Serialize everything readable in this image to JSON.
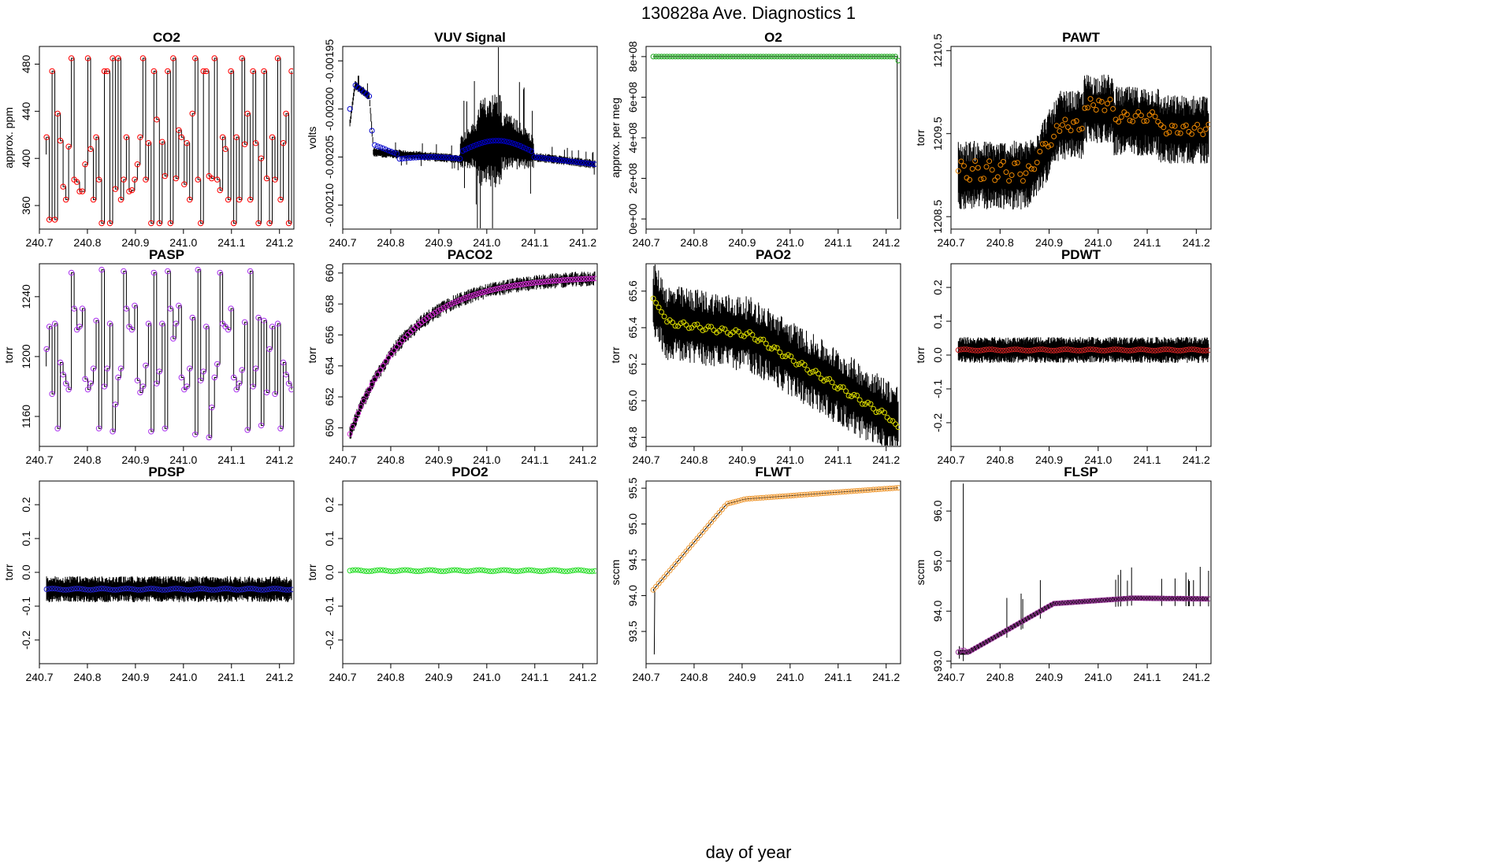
{
  "page": {
    "title": "130828a   Ave. Diagnostics 1",
    "xlabel": "day of year"
  },
  "chart_data": [
    {
      "type": "line",
      "title": "CO2",
      "ylabel": "approx. ppm",
      "xlim": [
        240.7,
        241.23
      ],
      "ylim": [
        340,
        495
      ],
      "xticks": [
        "240.7",
        "240.8",
        "240.9",
        "241.0",
        "241.1",
        "241.2"
      ],
      "yticks": [
        "360",
        "400",
        "440",
        "480"
      ],
      "point_color": "#ff0000",
      "pattern": "co2"
    },
    {
      "type": "line",
      "title": "VUV Signal",
      "ylabel": "volts",
      "xlim": [
        240.7,
        241.23
      ],
      "ylim": [
        -0.002125,
        -0.001935
      ],
      "xticks": [
        "240.7",
        "240.8",
        "240.9",
        "241.0",
        "241.1",
        "241.2"
      ],
      "yticks": [
        "-0.00210",
        "-0.00205",
        "-0.00200",
        "-0.00195"
      ],
      "point_color": "#0000cc",
      "pattern": "vuv"
    },
    {
      "type": "line",
      "title": "O2",
      "ylabel": "approx. per meg",
      "xlim": [
        240.7,
        241.23
      ],
      "ylim": [
        -50000000,
        850000000
      ],
      "xticks": [
        "240.7",
        "240.8",
        "240.9",
        "241.0",
        "241.1",
        "241.2"
      ],
      "yticks": [
        "0e+00",
        "2e+08",
        "4e+08",
        "6e+08",
        "8e+08"
      ],
      "point_color": "#22aa22",
      "pattern": "o2"
    },
    {
      "type": "line",
      "title": "PAWT",
      "ylabel": "torr",
      "xlim": [
        240.7,
        241.23
      ],
      "ylim": [
        1208.35,
        1210.55
      ],
      "xticks": [
        "240.7",
        "240.8",
        "240.9",
        "241.0",
        "241.1",
        "241.2"
      ],
      "yticks": [
        "1208.5",
        "1209.5",
        "1210.5"
      ],
      "point_color": "#ee8800",
      "pattern": "pawt"
    },
    {
      "type": "line",
      "title": "PASP",
      "ylabel": "torr",
      "xlim": [
        240.7,
        241.23
      ],
      "ylim": [
        1140,
        1262
      ],
      "xticks": [
        "240.7",
        "240.8",
        "240.9",
        "241.0",
        "241.1",
        "241.2"
      ],
      "yticks": [
        "1160",
        "1200",
        "1240"
      ],
      "point_color": "#aa33ee",
      "pattern": "pasp"
    },
    {
      "type": "line",
      "title": "PACO2",
      "ylabel": "torr",
      "xlim": [
        240.7,
        241.23
      ],
      "ylim": [
        648.8,
        660.6
      ],
      "xticks": [
        "240.7",
        "240.8",
        "240.9",
        "241.0",
        "241.1",
        "241.2"
      ],
      "yticks": [
        "650",
        "652",
        "654",
        "656",
        "658",
        "660"
      ],
      "point_color": "#dd33dd",
      "pattern": "paco2"
    },
    {
      "type": "line",
      "title": "PAO2",
      "ylabel": "torr",
      "xlim": [
        240.7,
        241.23
      ],
      "ylim": [
        64.75,
        65.75
      ],
      "xticks": [
        "240.7",
        "240.8",
        "240.9",
        "241.0",
        "241.1",
        "241.2"
      ],
      "yticks": [
        "64.8",
        "65.0",
        "65.2",
        "65.4",
        "65.6"
      ],
      "point_color": "#dddd00",
      "pattern": "pao2"
    },
    {
      "type": "line",
      "title": "PDWT",
      "ylabel": "torr",
      "xlim": [
        240.7,
        241.23
      ],
      "ylim": [
        -0.27,
        0.27
      ],
      "xticks": [
        "240.7",
        "240.8",
        "240.9",
        "241.0",
        "241.1",
        "241.2"
      ],
      "yticks": [
        "-0.2",
        "-0.1",
        "0.0",
        "0.1",
        "0.2"
      ],
      "point_color": "#cc2222",
      "pattern": "pdwt"
    },
    {
      "type": "line",
      "title": "PDSP",
      "ylabel": "torr",
      "xlim": [
        240.7,
        241.23
      ],
      "ylim": [
        -0.27,
        0.27
      ],
      "xticks": [
        "240.7",
        "240.8",
        "240.9",
        "241.0",
        "241.1",
        "241.2"
      ],
      "yticks": [
        "-0.2",
        "-0.1",
        "0.0",
        "0.1",
        "0.2"
      ],
      "point_color": "#2222cc",
      "pattern": "pdsp"
    },
    {
      "type": "line",
      "title": "PDO2",
      "ylabel": "torr",
      "xlim": [
        240.7,
        241.23
      ],
      "ylim": [
        -0.27,
        0.27
      ],
      "xticks": [
        "240.7",
        "240.8",
        "240.9",
        "241.0",
        "241.1",
        "241.2"
      ],
      "yticks": [
        "-0.2",
        "-0.1",
        "0.0",
        "0.1",
        "0.2"
      ],
      "point_color": "#22dd22",
      "pattern": "pdo2"
    },
    {
      "type": "line",
      "title": "FLWT",
      "ylabel": "sccm",
      "xlim": [
        240.7,
        241.23
      ],
      "ylim": [
        93.05,
        95.6
      ],
      "xticks": [
        "240.7",
        "240.8",
        "240.9",
        "241.0",
        "241.1",
        "241.2"
      ],
      "yticks": [
        "93.5",
        "94.0",
        "94.5",
        "95.0",
        "95.5"
      ],
      "point_color": "#ee9933",
      "pattern": "flwt"
    },
    {
      "type": "line",
      "title": "FLSP",
      "ylabel": "sccm",
      "xlim": [
        240.7,
        241.23
      ],
      "ylim": [
        92.95,
        96.6
      ],
      "xticks": [
        "240.7",
        "240.8",
        "240.9",
        "241.0",
        "241.1",
        "241.2"
      ],
      "yticks": [
        "93.0",
        "94.0",
        "95.0",
        "96.0"
      ],
      "point_color": "#993399",
      "pattern": "flsp"
    }
  ]
}
